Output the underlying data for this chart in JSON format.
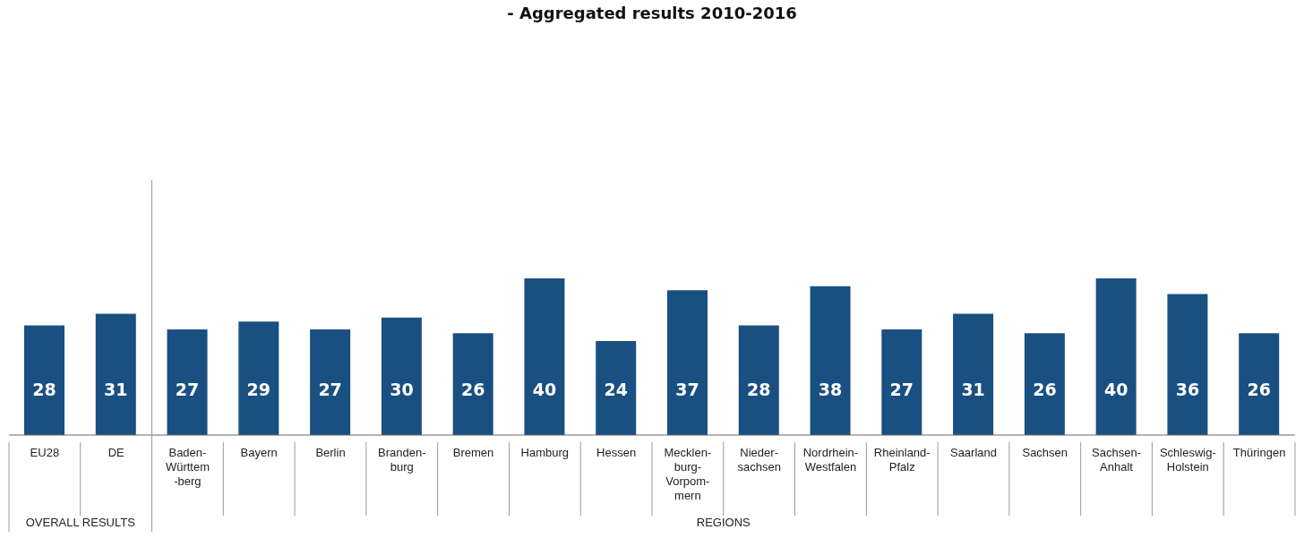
{
  "chart_data": {
    "type": "bar",
    "title": "- Aggregated results 2010-2016",
    "categories": [
      "EU28",
      "DE",
      "Baden-\nWürttem\n-berg",
      "Bayern",
      "Berlin",
      "Branden-\nburg",
      "Bremen",
      "Hamburg",
      "Hessen",
      "Mecklen-\nburg-\nVorpom-\nmern",
      "Nieder-\nsachsen",
      "Nordrhein-\nWestfalen",
      "Rheinland-\nPfalz",
      "Saarland",
      "Sachsen",
      "Sachsen-\nAnhalt",
      "Schleswig-\nHolstein",
      "Thüringen"
    ],
    "values": [
      28,
      31,
      27,
      29,
      27,
      30,
      26,
      40,
      24,
      37,
      28,
      38,
      27,
      31,
      26,
      40,
      36,
      26
    ],
    "color": "#1a4f82",
    "data_labels": true,
    "grid": false,
    "legend": false,
    "annotations": [
      "OVERALL RESULTS",
      "REGIONS"
    ]
  }
}
